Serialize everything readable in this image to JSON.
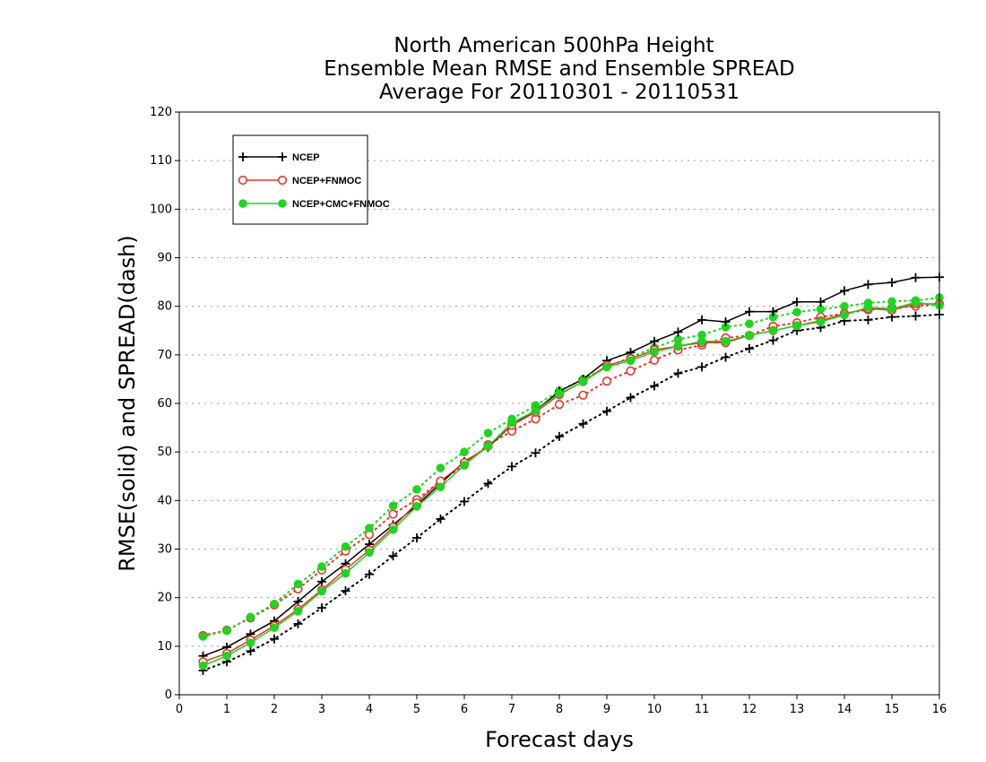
{
  "chart_data": {
    "type": "line",
    "title": [
      "North American 500hPa Height",
      "Ensemble Mean RMSE and Ensemble SPREAD",
      "Average For 20110301 - 20110531"
    ],
    "xlabel": "Forecast days",
    "ylabel": "RMSE(solid) and SPREAD(dash)",
    "xlim": [
      0,
      16
    ],
    "ylim": [
      0,
      120
    ],
    "xticks": [
      "0",
      "1",
      "2",
      "3",
      "4",
      "5",
      "6",
      "7",
      "8",
      "9",
      "10",
      "11",
      "12",
      "13",
      "14",
      "15",
      "16"
    ],
    "yticks": [
      "0",
      "10",
      "20",
      "30",
      "40",
      "50",
      "60",
      "70",
      "80",
      "90",
      "100",
      "110",
      "120"
    ],
    "grid": true,
    "legend_position": "top-left",
    "x": [
      0.5,
      1,
      1.5,
      2,
      2.5,
      3,
      3.5,
      4,
      4.5,
      5,
      5.5,
      6,
      6.5,
      7,
      7.5,
      8,
      8.5,
      9,
      9.5,
      10,
      10.5,
      11,
      11.5,
      12,
      12.5,
      13,
      13.5,
      14,
      14.5,
      15,
      15.5,
      16
    ],
    "series": [
      {
        "name": "NCEP",
        "metric": "RMSE",
        "style": "solid",
        "marker": "plus",
        "color": "#000000",
        "values": [
          8,
          9.8,
          12.5,
          15.2,
          19.2,
          23.3,
          27,
          31,
          35,
          39,
          43.5,
          48,
          51,
          55.5,
          58.5,
          62.5,
          65,
          68.8,
          70.5,
          72.8,
          74.7,
          77.2,
          76.8,
          78.9,
          78.9,
          80.9,
          80.9,
          83.2,
          84.5,
          84.9,
          85.9,
          86
        ]
      },
      {
        "name": "NCEP+FNMOC",
        "metric": "RMSE",
        "style": "solid",
        "marker": "circle",
        "color": "#e8352a",
        "values": [
          6.8,
          8.5,
          11.3,
          14.2,
          17.6,
          21.6,
          25.8,
          29.8,
          34.5,
          39.5,
          44,
          47.8,
          51.2,
          55.5,
          58.2,
          61.8,
          64.5,
          67.8,
          69.2,
          71,
          71.8,
          72.5,
          72.5,
          74,
          75,
          76,
          77,
          78.5,
          79.5,
          79.2,
          80.5,
          80.5
        ]
      },
      {
        "name": "NCEP+CMC+FNMOC",
        "metric": "RMSE",
        "style": "solid",
        "marker": "dot",
        "color": "#20d420",
        "values": [
          6,
          8,
          10.7,
          13.8,
          17.2,
          21.3,
          25,
          29.3,
          34,
          38.8,
          42.8,
          47.3,
          51.2,
          56,
          58.5,
          62,
          64.5,
          67.5,
          68.8,
          70.6,
          71.8,
          72.8,
          72.8,
          74,
          75,
          76,
          76.8,
          78.2,
          79.8,
          79.5,
          80.8,
          80.2
        ]
      },
      {
        "name": "NCEP",
        "metric": "SPREAD",
        "style": "dash",
        "marker": "plus",
        "color": "#000000",
        "values": [
          5,
          6.8,
          9,
          11.5,
          14.6,
          17.9,
          21.4,
          24.8,
          28.6,
          32.3,
          36.2,
          39.8,
          43.5,
          47,
          49.8,
          53.2,
          55.8,
          58.4,
          61.2,
          63.6,
          66.2,
          67.5,
          69.5,
          71.3,
          73,
          75,
          75.6,
          77,
          77.2,
          77.8,
          78,
          78.3
        ]
      },
      {
        "name": "NCEP+FNMOC",
        "metric": "SPREAD",
        "style": "dash",
        "marker": "circle",
        "color": "#e8352a",
        "values": [
          12.2,
          13.3,
          15.8,
          18.5,
          21.8,
          25.7,
          29.6,
          33,
          37.2,
          40.2,
          44,
          47.3,
          51.5,
          54.3,
          56.8,
          59.8,
          61.7,
          64.6,
          66.7,
          68.9,
          71,
          72,
          73.5,
          74,
          75.9,
          76.6,
          77.8,
          78.5,
          79.3,
          79.7,
          80,
          80.5
        ]
      },
      {
        "name": "NCEP+CMC+FNMOC",
        "metric": "SPREAD",
        "style": "dash",
        "marker": "dot",
        "color": "#20d420",
        "values": [
          12,
          13.2,
          16,
          18.7,
          22.8,
          26.4,
          30.5,
          34.3,
          38.9,
          42.3,
          46.7,
          50,
          53.9,
          56.8,
          59.6,
          62.6,
          65,
          67.5,
          69.5,
          71.5,
          73.2,
          74.1,
          75.7,
          76.4,
          77.8,
          78.8,
          79.4,
          80,
          80.7,
          81,
          81.2,
          81.8
        ]
      }
    ]
  }
}
